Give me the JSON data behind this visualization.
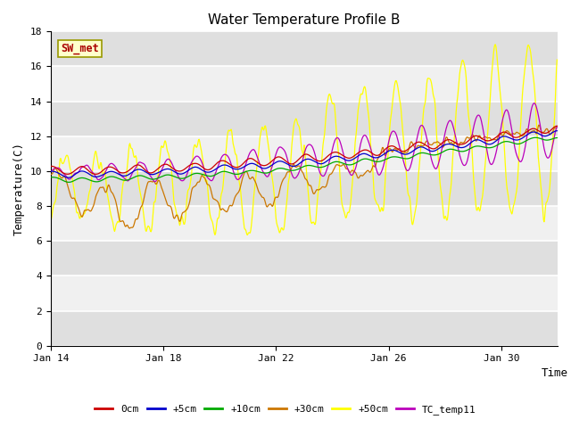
{
  "title": "Water Temperature Profile B",
  "xlabel": "Time",
  "ylabel": "Temperature(C)",
  "ylim": [
    0,
    18
  ],
  "yticks": [
    0,
    2,
    4,
    6,
    8,
    10,
    12,
    14,
    16,
    18
  ],
  "series_colors": {
    "0cm": "#cc0000",
    "+5cm": "#0000cc",
    "+10cm": "#00aa00",
    "+30cm": "#cc7700",
    "+50cm": "#ffff00",
    "TC_temp11": "#bb00bb"
  },
  "annotation_text": "SW_met",
  "plot_bg_color": "#f0f0f0",
  "stripe_color": "#d8d8d8",
  "font_family": "monospace"
}
